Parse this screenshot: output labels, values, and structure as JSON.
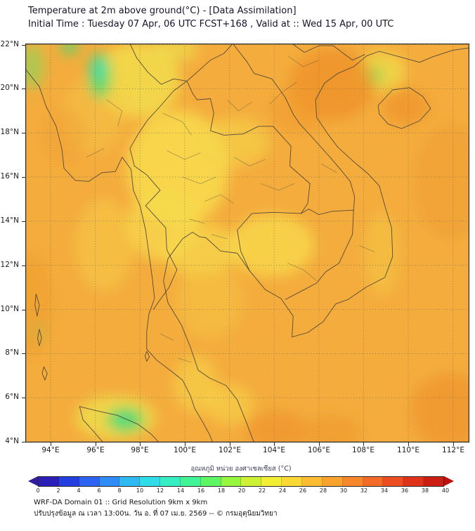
{
  "header": {
    "title": "Temperature at 2m above ground(°C) - [Data Assimilation]",
    "subtitle": "Initial Time : Tuesday 07 Apr, 06 UTC FCST+168 , Valid at :: Wed 15 Apr, 00 UTC"
  },
  "map": {
    "x_axis": {
      "tick_labels": [
        "94°E",
        "96°E",
        "98°E",
        "100°E",
        "102°E",
        "104°E",
        "106°E",
        "108°E",
        "110°E",
        "112°E"
      ],
      "tick_values": [
        94,
        96,
        98,
        100,
        102,
        104,
        106,
        108,
        110,
        112
      ]
    },
    "y_axis": {
      "tick_labels": [
        "22°N",
        "20°N",
        "18°N",
        "16°N",
        "14°N",
        "12°N",
        "10°N",
        "8°N",
        "6°N",
        "4°N"
      ],
      "tick_values": [
        22,
        20,
        18,
        16,
        14,
        12,
        10,
        8,
        6,
        4
      ]
    },
    "lon_range": [
      92.87,
      112.73
    ],
    "lat_range": [
      3.97,
      22.05
    ]
  },
  "colorbar": {
    "title": "อุณหภูมิ หน่วย องศาเซลเซียส (°C)",
    "tick_values": [
      0,
      2,
      4,
      6,
      8,
      10,
      12,
      14,
      16,
      18,
      20,
      22,
      24,
      26,
      28,
      30,
      32,
      34,
      36,
      38,
      40
    ],
    "segment_colors": [
      "#2b1fb8",
      "#233fe0",
      "#2b63f2",
      "#2f8cf7",
      "#2fb9f2",
      "#2fdde8",
      "#35eec2",
      "#3ff596",
      "#5ef763",
      "#97f73f",
      "#cdf233",
      "#f2ee33",
      "#fbd833",
      "#fbbc31",
      "#f9a22e",
      "#f7872b",
      "#f46a27",
      "#ee4c21",
      "#e0321b",
      "#cc1d13"
    ],
    "under_arrow_color": "#2f1d9e",
    "over_arrow_color": "#c00e0c"
  },
  "chart_data": {
    "type": "heatmap",
    "title": "Temperature at 2m above ground (°C), WRF-DA forecast",
    "units": "°C",
    "scale_min": 0,
    "scale_max": 40,
    "scale_step": 2,
    "value_range_on_map": [
      20,
      34
    ],
    "notes": "Field is mostly 28-32 °C (orange) over land and sea; 26-28 °C (yellow) patches over central/northern Thailand, Cambodia and the upper Gulf; cooler green spots (~20-24 °C) near 96E/20.5N in Myanmar, northern Sumatra (~97E/5N) and small highland spots; darker 30-34 °C oranges over the Gulf of Tonkin, far right and bottom-right sea areas."
  },
  "footer": {
    "line1": "WRF-DA Domain 01 :: Grid Resolution 9km x 9km",
    "line2": "ปรับปรุงข้อมูล ณ เวลา 13:00น. วัน อ. ที่ 07 เม.ย. 2569 -- © กรมอุตุนิยมวิทยา"
  }
}
